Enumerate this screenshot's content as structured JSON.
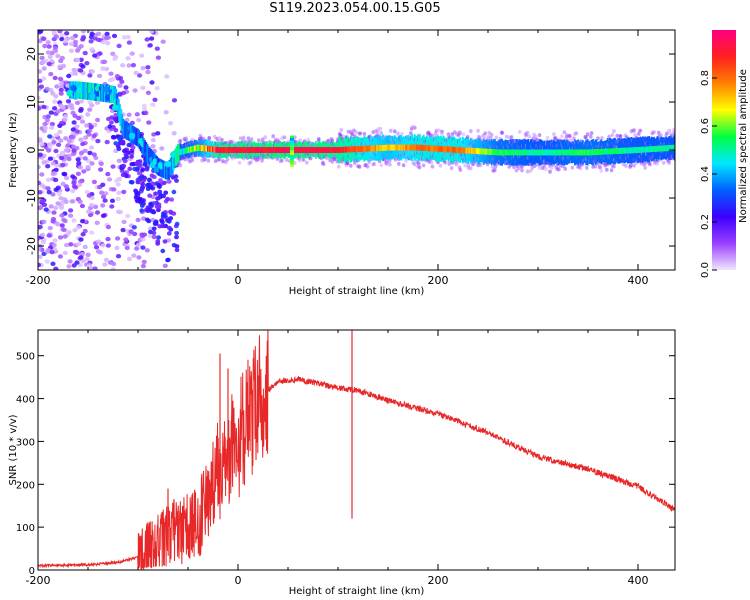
{
  "title": "S119.2023.054.00.15.G05",
  "colors": {
    "snr_line": "#e82828",
    "colormap": [
      "#f0e6ff",
      "#9a40ff",
      "#3a00ff",
      "#0060ff",
      "#00e8ff",
      "#00ff40",
      "#ffff00",
      "#ff8000",
      "#ff2020",
      "#ff0080"
    ]
  },
  "chart_data": [
    {
      "type": "heatmap",
      "title": "S119.2023.054.00.15.G05",
      "xlabel": "Height of straight line (km)",
      "ylabel": "Frequency (Hz)",
      "xlim": [
        -200,
        437
      ],
      "ylim": [
        -25,
        25
      ],
      "xticks": [
        -200,
        0,
        200,
        400
      ],
      "yticks": [
        -20,
        -10,
        0,
        10,
        20
      ],
      "colorbar": {
        "label": "Normalized spectral amplitude",
        "range": [
          0,
          1
        ],
        "ticks": [
          "0.0",
          "0.2",
          "0.4",
          "0.6",
          "0.8"
        ]
      },
      "ridge": [
        {
          "x": -160,
          "freq": 12.5,
          "amp": 0.45
        },
        {
          "x": -140,
          "freq": 12.0,
          "amp": 0.4
        },
        {
          "x": -123,
          "freq": 11.5,
          "amp": 0.4
        },
        {
          "x": -115,
          "freq": 4.5,
          "amp": 0.35
        },
        {
          "x": -100,
          "freq": 2.5,
          "amp": 0.3
        },
        {
          "x": -90,
          "freq": -1.0,
          "amp": 0.3
        },
        {
          "x": -80,
          "freq": -3.5,
          "amp": 0.3
        },
        {
          "x": -70,
          "freq": -4.5,
          "amp": 0.35
        },
        {
          "x": -60,
          "freq": -0.5,
          "amp": 0.45
        },
        {
          "x": -40,
          "freq": 0.5,
          "amp": 0.6
        },
        {
          "x": -20,
          "freq": 0.0,
          "amp": 0.9
        },
        {
          "x": 50,
          "freq": 0.0,
          "amp": 0.95
        },
        {
          "x": 100,
          "freq": 0.0,
          "amp": 0.9
        },
        {
          "x": 150,
          "freq": 0.5,
          "amp": 0.7
        },
        {
          "x": 180,
          "freq": 0.5,
          "amp": 0.8
        },
        {
          "x": 220,
          "freq": 0.0,
          "amp": 0.8
        },
        {
          "x": 260,
          "freq": -0.5,
          "amp": 0.55
        },
        {
          "x": 300,
          "freq": -0.5,
          "amp": 0.5
        },
        {
          "x": 350,
          "freq": -0.5,
          "amp": 0.55
        },
        {
          "x": 400,
          "freq": 0.0,
          "amp": 0.5
        },
        {
          "x": 437,
          "freq": 0.5,
          "amp": 0.5
        }
      ]
    },
    {
      "type": "line",
      "xlabel": "Height of straight line (km)",
      "ylabel": "SNR (10 * v/v)",
      "xlim": [
        -200,
        437
      ],
      "ylim": [
        0,
        560
      ],
      "xticks": [
        -200,
        0,
        200,
        400
      ],
      "yticks": [
        0,
        100,
        200,
        300,
        400,
        500
      ],
      "series": [
        {
          "x": [
            -200,
            -150,
            -120,
            -100,
            -80,
            -60,
            -40,
            -30,
            -20,
            -10,
            0,
            10,
            20,
            40,
            60,
            80,
            100,
            114,
            120,
            150,
            200,
            250,
            300,
            350,
            400,
            437
          ],
          "y": [
            10,
            12,
            18,
            30,
            55,
            90,
            110,
            160,
            230,
            280,
            300,
            340,
            400,
            440,
            445,
            435,
            425,
            420,
            420,
            395,
            365,
            320,
            265,
            235,
            195,
            140
          ]
        }
      ],
      "spikes": [
        {
          "x": -70,
          "y": 190
        },
        {
          "x": -18,
          "y": 505
        },
        {
          "x": -10,
          "y": 470
        },
        {
          "x": 114,
          "y": 560
        },
        {
          "x": 114,
          "y": 120
        }
      ]
    }
  ]
}
